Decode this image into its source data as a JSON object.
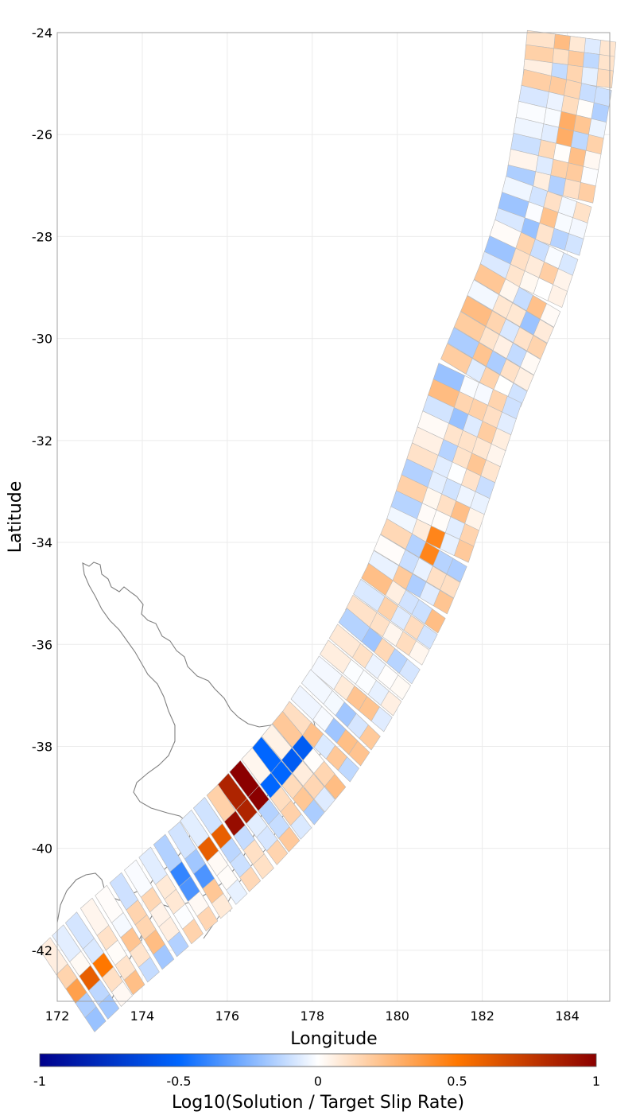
{
  "map": {
    "xlabel": "Longitude",
    "ylabel": "Latitude",
    "lon_range": [
      172,
      185
    ],
    "lat_range": [
      -43,
      -24
    ],
    "x_ticks": [
      "172",
      "174",
      "176",
      "178",
      "180",
      "182",
      "184"
    ],
    "y_ticks": [
      "-24",
      "-26",
      "-28",
      "-30",
      "-32",
      "-34",
      "-36",
      "-38",
      "-40",
      "-42"
    ],
    "grid": true,
    "coastline_color": "#808080",
    "patch_edge_color": "#b8b8b8"
  },
  "colorbar": {
    "label": "Log10(Solution / Target Slip Rate)",
    "range": [
      -1,
      1
    ],
    "ticks": [
      "-1",
      "-0.5",
      "0",
      "0.5",
      "1"
    ],
    "stops": [
      "#00008b",
      "#0066ff",
      "#ffffff",
      "#ff7700",
      "#8b0000"
    ]
  },
  "chart_data": {
    "type": "heatmap",
    "description_units": "log10 ratio per fault patch (approximate readout of notable patches)",
    "notable_patches": [
      {
        "lon": 176.5,
        "lat": -38.8,
        "value": 1.0
      },
      {
        "lon": 176.2,
        "lat": -39.0,
        "value": 0.85
      },
      {
        "lon": 176.1,
        "lat": -39.3,
        "value": 0.95
      },
      {
        "lon": 175.5,
        "lat": -39.7,
        "value": 0.6
      },
      {
        "lon": 172.6,
        "lat": -42.5,
        "value": 0.6
      },
      {
        "lon": 172.9,
        "lat": -42.2,
        "value": 0.5
      },
      {
        "lon": 172.3,
        "lat": -42.7,
        "value": 0.35
      },
      {
        "lon": 177.5,
        "lat": -38.0,
        "value": -0.55
      },
      {
        "lon": 177.0,
        "lat": -38.4,
        "value": -0.5
      },
      {
        "lon": 174.8,
        "lat": -40.6,
        "value": -0.4
      },
      {
        "lon": 175.2,
        "lat": -40.5,
        "value": -0.35
      },
      {
        "lon": 180.7,
        "lat": -34.1,
        "value": 0.45
      },
      {
        "lon": 183.9,
        "lat": -25.8,
        "value": 0.3
      }
    ]
  }
}
